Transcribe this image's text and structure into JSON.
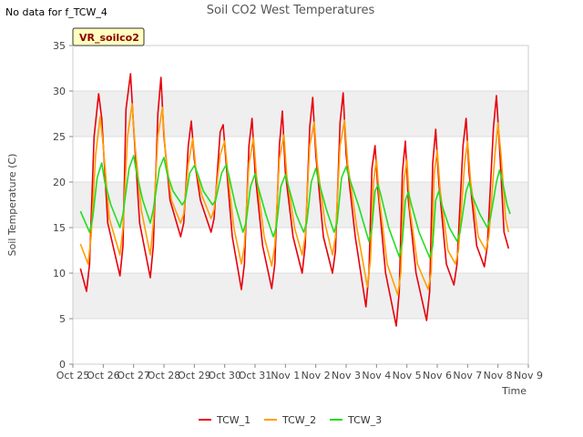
{
  "no_data_text": "No data for f_TCW_4",
  "badge_label": "VR_soilco2",
  "colors": {
    "TCW_1": "#e8000b",
    "TCW_2": "#ff9f00",
    "TCW_3": "#22dd22",
    "band": "#efefef",
    "grid": "#dddddd"
  },
  "chart_data": {
    "type": "line",
    "title": "Soil CO2 West Temperatures",
    "xlabel": "Time",
    "ylabel": "Soil Temperature (C)",
    "xlim": [
      0,
      15
    ],
    "ylim": [
      0,
      35
    ],
    "yticks": [
      0,
      5,
      10,
      15,
      20,
      25,
      30,
      35
    ],
    "xtick_labels": [
      "Oct 25",
      "Oct 26",
      "Oct 27",
      "Oct 28",
      "Oct 29",
      "Oct 30",
      "Oct 31",
      "Nov 1",
      "Nov 2",
      "Nov 3",
      "Nov 4",
      "Nov 5",
      "Nov 6",
      "Nov 7",
      "Nov 8",
      "Nov 9"
    ],
    "legend_position": "bottom-center",
    "grid": true,
    "series": [
      {
        "name": "TCW_1",
        "x": [
          0.25,
          0.45,
          0.55,
          0.7,
          0.85,
          0.95,
          1.15,
          1.55,
          1.65,
          1.75,
          1.9,
          2.0,
          2.2,
          2.55,
          2.65,
          2.8,
          2.9,
          3.0,
          3.2,
          3.55,
          3.65,
          3.8,
          3.9,
          4.0,
          4.2,
          4.55,
          4.65,
          4.85,
          4.95,
          5.05,
          5.25,
          5.55,
          5.65,
          5.8,
          5.9,
          6.0,
          6.25,
          6.55,
          6.65,
          6.8,
          6.9,
          7.0,
          7.25,
          7.55,
          7.65,
          7.8,
          7.9,
          8.0,
          8.25,
          8.55,
          8.65,
          8.8,
          8.9,
          9.0,
          9.3,
          9.65,
          9.75,
          9.85,
          9.95,
          10.05,
          10.3,
          10.65,
          10.75,
          10.85,
          10.95,
          11.05,
          11.3,
          11.65,
          11.75,
          11.85,
          11.95,
          12.05,
          12.3,
          12.55,
          12.65,
          12.85,
          12.95,
          13.05,
          13.3,
          13.55,
          13.65,
          13.85,
          13.95,
          14.05,
          14.2,
          14.35
        ],
        "y": [
          10.5,
          8.0,
          11.0,
          25.0,
          29.7,
          27.0,
          15.5,
          9.7,
          13.0,
          28.0,
          31.9,
          26.0,
          15.5,
          9.5,
          13.0,
          27.5,
          31.5,
          25.0,
          18.0,
          14.0,
          15.5,
          24.0,
          26.7,
          22.5,
          18.0,
          14.5,
          16.0,
          25.5,
          26.3,
          22.0,
          14.0,
          8.2,
          11.0,
          24.0,
          27.0,
          21.0,
          13.0,
          8.3,
          11.0,
          24.0,
          27.8,
          21.0,
          14.0,
          10.0,
          13.0,
          26.0,
          29.3,
          23.0,
          14.0,
          10.0,
          12.5,
          26.5,
          29.8,
          23.0,
          14.0,
          6.3,
          10.0,
          21.5,
          24.0,
          19.0,
          10.0,
          4.2,
          8.0,
          21.0,
          24.5,
          18.0,
          10.0,
          4.8,
          8.0,
          22.0,
          25.8,
          20.0,
          11.0,
          8.7,
          11.0,
          24.0,
          27.0,
          21.0,
          13.0,
          10.7,
          13.0,
          26.0,
          29.5,
          24.0,
          14.5,
          12.7
        ]
      },
      {
        "name": "TCW_2",
        "x": [
          0.25,
          0.5,
          0.6,
          0.75,
          0.9,
          1.0,
          1.2,
          1.55,
          1.65,
          1.8,
          1.95,
          2.05,
          2.25,
          2.55,
          2.65,
          2.8,
          2.95,
          3.05,
          3.25,
          3.55,
          3.65,
          3.8,
          3.95,
          4.05,
          4.25,
          4.55,
          4.65,
          4.85,
          5.0,
          5.1,
          5.3,
          5.55,
          5.65,
          5.8,
          5.95,
          6.05,
          6.3,
          6.55,
          6.65,
          6.8,
          6.95,
          7.05,
          7.3,
          7.55,
          7.65,
          7.8,
          7.95,
          8.05,
          8.3,
          8.55,
          8.65,
          8.8,
          8.95,
          9.05,
          9.35,
          9.7,
          9.8,
          9.9,
          10.0,
          10.1,
          10.35,
          10.7,
          10.8,
          10.9,
          11.0,
          11.1,
          11.35,
          11.7,
          11.8,
          11.9,
          12.0,
          12.1,
          12.35,
          12.6,
          12.7,
          12.9,
          13.0,
          13.1,
          13.35,
          13.6,
          13.7,
          13.9,
          14.0,
          14.1,
          14.25,
          14.35
        ],
        "y": [
          13.2,
          11.0,
          14.0,
          23.0,
          27.2,
          24.0,
          16.0,
          12.0,
          15.0,
          25.0,
          28.6,
          24.0,
          17.0,
          12.0,
          15.5,
          25.0,
          28.2,
          23.0,
          18.0,
          15.5,
          16.5,
          22.0,
          24.8,
          21.5,
          18.5,
          16.0,
          17.0,
          23.0,
          24.5,
          21.0,
          15.0,
          11.0,
          13.0,
          22.0,
          24.9,
          20.5,
          14.0,
          10.8,
          13.0,
          22.5,
          25.2,
          20.5,
          15.0,
          12.0,
          14.0,
          24.0,
          26.6,
          22.0,
          15.5,
          12.0,
          14.0,
          24.0,
          26.8,
          22.0,
          15.0,
          8.5,
          11.5,
          20.0,
          22.5,
          18.0,
          11.0,
          7.6,
          10.0,
          20.0,
          22.5,
          17.0,
          11.0,
          8.2,
          10.0,
          21.0,
          23.5,
          19.0,
          12.5,
          11.0,
          12.5,
          22.0,
          24.5,
          20.0,
          14.0,
          12.5,
          14.0,
          23.0,
          26.5,
          23.0,
          16.0,
          14.5
        ]
      },
      {
        "name": "TCW_3",
        "x": [
          0.25,
          0.55,
          0.65,
          0.8,
          0.95,
          1.05,
          1.25,
          1.55,
          1.65,
          1.85,
          2.0,
          2.1,
          2.3,
          2.55,
          2.65,
          2.85,
          3.0,
          3.1,
          3.3,
          3.6,
          3.7,
          3.85,
          4.0,
          4.1,
          4.3,
          4.6,
          4.7,
          4.9,
          5.05,
          5.15,
          5.35,
          5.6,
          5.7,
          5.85,
          6.0,
          6.1,
          6.35,
          6.6,
          6.7,
          6.85,
          7.0,
          7.1,
          7.35,
          7.6,
          7.7,
          7.85,
          8.0,
          8.1,
          8.35,
          8.6,
          8.7,
          8.85,
          9.0,
          9.1,
          9.4,
          9.75,
          9.85,
          9.95,
          10.05,
          10.15,
          10.4,
          10.75,
          10.85,
          10.95,
          11.05,
          11.15,
          11.4,
          11.75,
          11.85,
          11.95,
          12.05,
          12.15,
          12.4,
          12.65,
          12.75,
          12.95,
          13.05,
          13.15,
          13.4,
          13.65,
          13.75,
          13.95,
          14.05,
          14.15,
          14.3,
          14.4
        ],
        "y": [
          16.8,
          14.5,
          16.0,
          20.5,
          22.1,
          20.0,
          17.5,
          15.0,
          16.5,
          21.5,
          22.9,
          21.0,
          18.0,
          15.5,
          17.0,
          21.5,
          22.7,
          21.0,
          19.0,
          17.5,
          18.0,
          21.0,
          21.8,
          21.0,
          19.0,
          17.5,
          18.0,
          21.0,
          21.9,
          20.5,
          17.5,
          14.5,
          15.5,
          19.5,
          20.9,
          19.5,
          16.5,
          14.0,
          15.0,
          19.5,
          20.8,
          19.5,
          16.5,
          14.5,
          15.5,
          20.0,
          21.5,
          20.0,
          17.0,
          14.5,
          15.5,
          20.5,
          21.7,
          20.5,
          17.5,
          13.5,
          15.0,
          19.0,
          19.7,
          18.5,
          15.0,
          11.8,
          13.5,
          18.0,
          18.9,
          17.5,
          14.5,
          11.7,
          13.0,
          18.0,
          19.0,
          17.5,
          15.0,
          13.5,
          14.5,
          19.0,
          20.0,
          18.5,
          16.5,
          15.0,
          16.0,
          20.0,
          21.3,
          20.0,
          17.5,
          16.5
        ]
      }
    ]
  }
}
